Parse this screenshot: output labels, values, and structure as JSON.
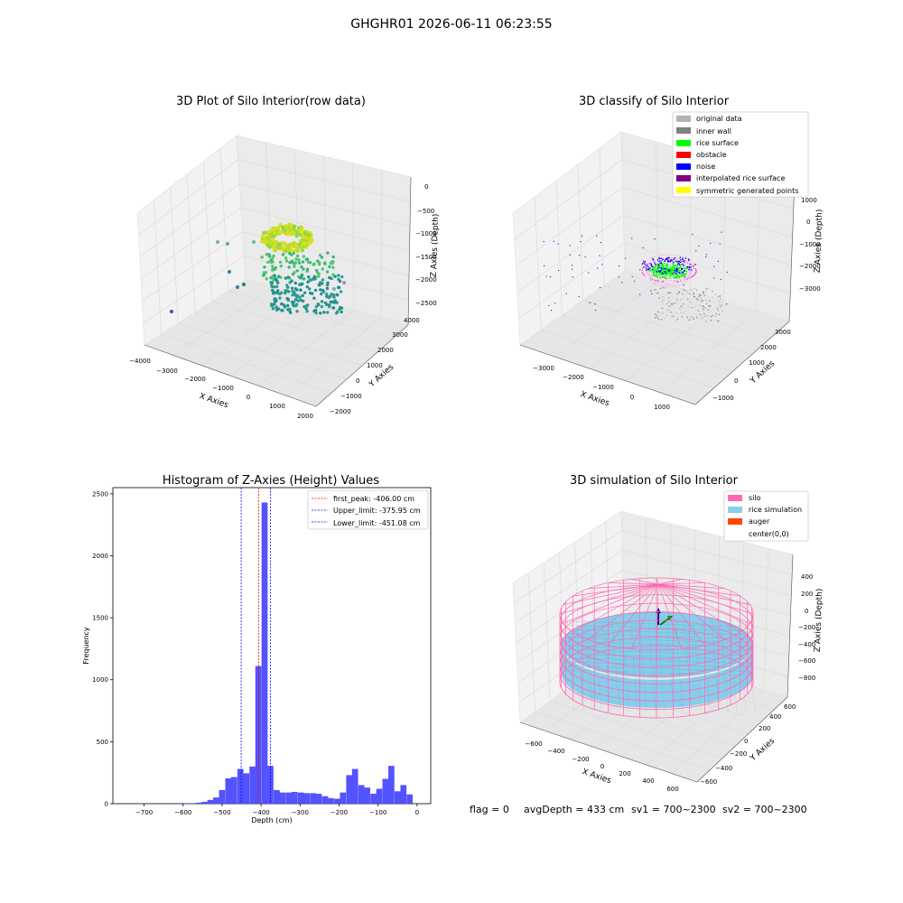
{
  "suptitle": "GHGHR01 2026-06-11 06:23:55",
  "footer": {
    "flag": "flag = 0",
    "avg": "avgDepth = 433 cm",
    "sv1": "sv1 = 700~2300",
    "sv2": "sv2 = 700~2300"
  },
  "colors": {
    "pane": "#f2f2f2",
    "grid": "#d9d9d9",
    "hist_bar": "#4a4aff",
    "silo": "#ff69b4",
    "rice": "#87ceeb"
  },
  "chart_data": [
    {
      "id": "raw",
      "type": "scatter",
      "title": "3D Plot of Silo Interior(row data)",
      "xlabel": "X Axies",
      "ylabel": "Y Axies",
      "zlabel": "Z Axies (Depth)",
      "xticks": [
        "−4000",
        "−3000",
        "−2000",
        "−1000",
        "0",
        "1000",
        "2000"
      ],
      "yticks": [
        "−2000",
        "−1000",
        "0",
        "1000",
        "2000",
        "3000",
        "4000"
      ],
      "zticks": [
        "0",
        "−500",
        "−1000",
        "−1500",
        "−2000",
        "−2500"
      ],
      "legend": null
    },
    {
      "id": "classify",
      "type": "scatter",
      "title": "3D classify of Silo Interior",
      "xlabel": "X Axies",
      "ylabel": "Y Axies",
      "zlabel": "Z Axies (Depth)",
      "xticks": [
        "−3000",
        "−2000",
        "−1000",
        "0",
        "1000"
      ],
      "yticks": [
        "−1000",
        "0",
        "1000",
        "2000",
        "3000"
      ],
      "zticks": [
        "1000",
        "0",
        "−1000",
        "−2000",
        "−3000"
      ],
      "legend": [
        {
          "label": "original data",
          "color": "#b3b3b3"
        },
        {
          "label": "inner wall",
          "color": "#808080"
        },
        {
          "label": "rice surface",
          "color": "#00ff00"
        },
        {
          "label": "obstacle",
          "color": "#ff0000"
        },
        {
          "label": "noise",
          "color": "#0000ff"
        },
        {
          "label": "interpolated rice surface",
          "color": "#800080"
        },
        {
          "label": "symmetric generated points",
          "color": "#ffff00"
        }
      ],
      "legend_placement": "top-right"
    },
    {
      "id": "hist",
      "type": "bar",
      "title": "Histogram of Z-Axies (Height) Values",
      "xlabel": "Depth (cm)",
      "ylabel": "Frequency",
      "xlim": [
        -780,
        35
      ],
      "ylim": [
        0,
        2550
      ],
      "xticks": [
        -700,
        -600,
        -500,
        -400,
        -300,
        -200,
        -100,
        0
      ],
      "yticks": [
        0,
        500,
        1000,
        1500,
        2000,
        2500
      ],
      "bin_width": 15.5,
      "bins": [
        {
          "x": -605,
          "y": 5
        },
        {
          "x": -590,
          "y": 3
        },
        {
          "x": -575,
          "y": 4
        },
        {
          "x": -560,
          "y": 8
        },
        {
          "x": -545,
          "y": 15
        },
        {
          "x": -530,
          "y": 30
        },
        {
          "x": -515,
          "y": 50
        },
        {
          "x": -500,
          "y": 110
        },
        {
          "x": -484,
          "y": 205
        },
        {
          "x": -469,
          "y": 215
        },
        {
          "x": -453,
          "y": 280
        },
        {
          "x": -438,
          "y": 245
        },
        {
          "x": -422,
          "y": 300
        },
        {
          "x": -407,
          "y": 1110
        },
        {
          "x": -391,
          "y": 2430
        },
        {
          "x": -376,
          "y": 305
        },
        {
          "x": -360,
          "y": 110
        },
        {
          "x": -345,
          "y": 90
        },
        {
          "x": -329,
          "y": 90
        },
        {
          "x": -314,
          "y": 95
        },
        {
          "x": -298,
          "y": 90
        },
        {
          "x": -283,
          "y": 85
        },
        {
          "x": -267,
          "y": 85
        },
        {
          "x": -252,
          "y": 80
        },
        {
          "x": -236,
          "y": 60
        },
        {
          "x": -221,
          "y": 45
        },
        {
          "x": -205,
          "y": 40
        },
        {
          "x": -190,
          "y": 90
        },
        {
          "x": -174,
          "y": 230
        },
        {
          "x": -159,
          "y": 280
        },
        {
          "x": -143,
          "y": 150
        },
        {
          "x": -128,
          "y": 130
        },
        {
          "x": -112,
          "y": 80
        },
        {
          "x": -97,
          "y": 120
        },
        {
          "x": -81,
          "y": 200
        },
        {
          "x": -66,
          "y": 305
        },
        {
          "x": -50,
          "y": 100
        },
        {
          "x": -35,
          "y": 150
        },
        {
          "x": -19,
          "y": 75
        }
      ],
      "vlines": [
        {
          "label": "first_peak: -406.00 cm",
          "x": -406.0,
          "color": "#ff0000"
        },
        {
          "label": "Upper_limit: -375.95 cm",
          "x": -375.95,
          "color": "#0000ff"
        },
        {
          "label": "Lower_limit: -451.08 cm",
          "x": -451.08,
          "color": "#0000ff"
        }
      ],
      "legend_placement": "top-right"
    },
    {
      "id": "sim",
      "type": "scatter",
      "title": "3D simulation of Silo Interior",
      "xlabel": "X Axies",
      "ylabel": "Y Axies",
      "zlabel": "Z Axies (Depth)",
      "xticks": [
        "−600",
        "−400",
        "−200",
        "0",
        "200",
        "400",
        "600"
      ],
      "yticks": [
        "−600",
        "−400",
        "−200",
        "0",
        "200",
        "400",
        "600"
      ],
      "zticks": [
        "400",
        "200",
        "0",
        "−200",
        "−400",
        "−600",
        "−800"
      ],
      "legend": [
        {
          "label": "silo",
          "color": "#ff69b4"
        },
        {
          "label": "rice simulation",
          "color": "#87ceeb"
        },
        {
          "label": "auger",
          "color": "#ff4500"
        },
        {
          "label": "center(0,0)",
          "color": ""
        }
      ],
      "legend_placement": "top-right"
    }
  ]
}
